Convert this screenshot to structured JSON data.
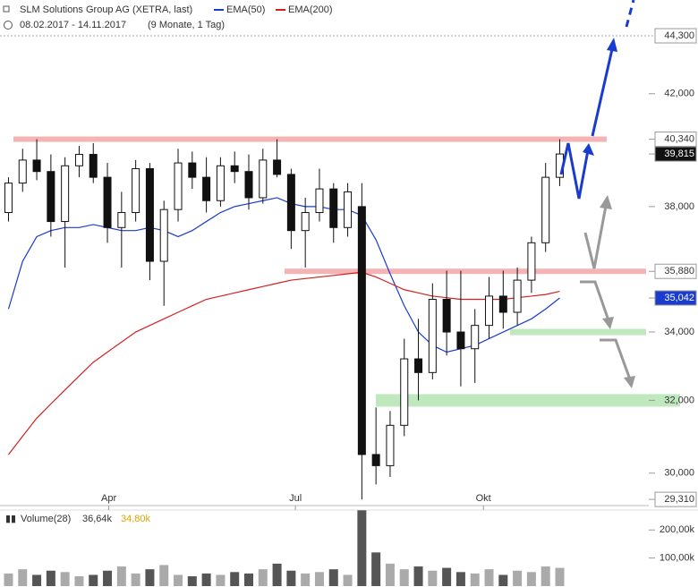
{
  "chart_data": {
    "type": "candlestick",
    "title": "SLM Solutions Group AG (XETRA, last)",
    "legend": [
      {
        "name": "EMA(50)",
        "color": "#1a3ccc"
      },
      {
        "name": "EMA(200)",
        "color": "#d42020"
      }
    ],
    "subtitle": "08.02.2017 - 14.11.2017",
    "period": "(9 Monate, 1 Tag)",
    "log_scale": true,
    "xlim": [
      -0.6,
      45.3
    ],
    "xticks": [
      {
        "value": 7.1,
        "label": "Apr"
      },
      {
        "value": 20.3,
        "label": "Jul"
      },
      {
        "value": 33.6,
        "label": "Okt"
      }
    ],
    "ylim": [
      29150,
      44850
    ],
    "yticks": [
      {
        "value": 30000,
        "label": "30,000"
      },
      {
        "value": 32000,
        "label": "32,000"
      },
      {
        "value": 34000,
        "label": "34,000"
      },
      {
        "value": 38000,
        "label": "38,000"
      },
      {
        "value": 42000,
        "label": "42,000"
      }
    ],
    "open": [
      37800,
      38800,
      39600,
      39200,
      37500,
      39400,
      39800,
      39000,
      37300,
      37800,
      39300,
      36200,
      37900,
      39500,
      39000,
      38200,
      39400,
      39200,
      38300,
      39600,
      39100,
      37200,
      37800,
      38600,
      37300,
      38000,
      30500,
      30200,
      31300,
      33200,
      32800,
      35000,
      34000,
      33500,
      34200,
      35100,
      34600,
      35600,
      36800,
      39000
    ],
    "high": [
      39000,
      40000,
      40340,
      39800,
      39700,
      40100,
      40200,
      39500,
      38500,
      39600,
      39500,
      38200,
      40000,
      39900,
      39700,
      39700,
      39900,
      39800,
      40000,
      40340,
      39300,
      38300,
      39300,
      38800,
      38800,
      38800,
      31800,
      31700,
      33800,
      34400,
      35500,
      35900,
      35900,
      34700,
      35700,
      35900,
      36000,
      37000,
      39500,
      40340
    ],
    "low": [
      37500,
      38500,
      38900,
      37000,
      36000,
      39000,
      38800,
      36800,
      36000,
      37500,
      35600,
      34800,
      37500,
      38600,
      37800,
      38000,
      38800,
      37900,
      38100,
      39000,
      36600,
      36000,
      37500,
      36800,
      37000,
      29310,
      29700,
      29900,
      31000,
      32000,
      32600,
      33300,
      32400,
      32500,
      33800,
      34100,
      34200,
      35200,
      36500,
      38700
    ],
    "close": [
      38800,
      39600,
      39200,
      37500,
      39400,
      39800,
      39000,
      37300,
      37800,
      39300,
      36200,
      37900,
      39500,
      39000,
      38200,
      39400,
      39200,
      38300,
      39600,
      39100,
      37200,
      37800,
      38600,
      37300,
      38500,
      30500,
      30200,
      31300,
      33200,
      32800,
      35000,
      34000,
      33500,
      34200,
      35100,
      34600,
      35600,
      36800,
      39000,
      39815
    ],
    "series": [
      {
        "name": "EMA(50)",
        "color": "#1a3ccc",
        "values": [
          34700,
          36200,
          37000,
          37200,
          37300,
          37300,
          37400,
          37300,
          37200,
          37200,
          37300,
          37200,
          37000,
          37200,
          37500,
          37800,
          38000,
          38100,
          38200,
          38300,
          38100,
          38000,
          38000,
          37900,
          37900,
          37700,
          36900,
          35800,
          34800,
          34000,
          33600,
          33400,
          33500,
          33600,
          33800,
          34000,
          34200,
          34400,
          34700,
          35042
        ]
      },
      {
        "name": "EMA(200)",
        "color": "#d42020",
        "values": [
          30500,
          31000,
          31500,
          31900,
          32300,
          32700,
          33100,
          33400,
          33700,
          34000,
          34200,
          34400,
          34600,
          34800,
          35000,
          35100,
          35200,
          35300,
          35400,
          35500,
          35600,
          35650,
          35700,
          35750,
          35800,
          35850,
          35700,
          35500,
          35300,
          35200,
          35100,
          35050,
          35000,
          35000,
          35000,
          35000,
          35050,
          35100,
          35150,
          35250
        ]
      }
    ],
    "levels": [
      {
        "value": 40340,
        "color": "#f4b4b4"
      },
      {
        "value": 35880,
        "color": "#f4b4b4"
      },
      {
        "value": 34000,
        "color": "#bfe8bf"
      },
      {
        "value": 32000,
        "color": "#bfe8bf"
      }
    ],
    "price_labels": [
      {
        "value": 44300,
        "label": "44,300"
      },
      {
        "value": 40340,
        "label": "40,340"
      },
      {
        "value": 39815,
        "label": "39,815"
      },
      {
        "value": 35880,
        "label": "35,880"
      },
      {
        "value": 35042,
        "label": "35,042"
      },
      {
        "value": 29310,
        "label": "29,310"
      }
    ],
    "volume": {
      "title": "Volume(28)",
      "average": "36,64k",
      "average2": "34,80k",
      "ylim": [
        0,
        255
      ],
      "yticks": [
        {
          "value": 100,
          "label": "100,00k"
        },
        {
          "value": 200,
          "label": "200,00k"
        }
      ],
      "values": [
        45,
        60,
        40,
        55,
        50,
        35,
        40,
        55,
        70,
        45,
        60,
        75,
        40,
        35,
        45,
        40,
        50,
        45,
        60,
        80,
        55,
        45,
        50,
        60,
        40,
        270,
        120,
        80,
        60,
        70,
        55,
        65,
        50,
        45,
        60,
        40,
        55,
        50,
        70,
        65
      ]
    }
  }
}
